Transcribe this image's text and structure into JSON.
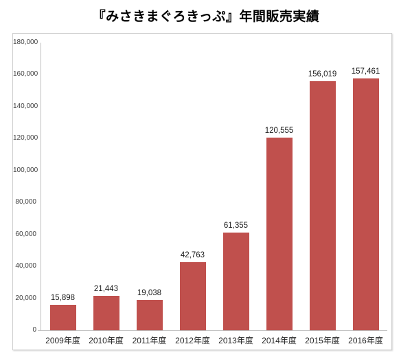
{
  "chart_data": {
    "type": "bar",
    "title": "『みさきまぐろきっぷ』年間販売実績",
    "categories": [
      "2009年度",
      "2010年度",
      "2011年度",
      "2012年度",
      "2013年度",
      "2014年度",
      "2015年度",
      "2016年度"
    ],
    "values": [
      15898,
      21443,
      19038,
      42763,
      61355,
      120555,
      156019,
      157461
    ],
    "value_labels": [
      "15,898",
      "21,443",
      "19,038",
      "42,763",
      "61,355",
      "120,555",
      "156,019",
      "157,461"
    ],
    "ylim": [
      0,
      180000
    ],
    "y_tick_step": 20000,
    "y_tick_labels": [
      "0",
      "20,000",
      "40,000",
      "60,000",
      "80,000",
      "100,000",
      "120,000",
      "140,000",
      "160,000",
      "180,000"
    ],
    "bar_color": "#c0504d",
    "axis_line_color": "#bfbfbf",
    "grid": false,
    "legend": "none"
  }
}
